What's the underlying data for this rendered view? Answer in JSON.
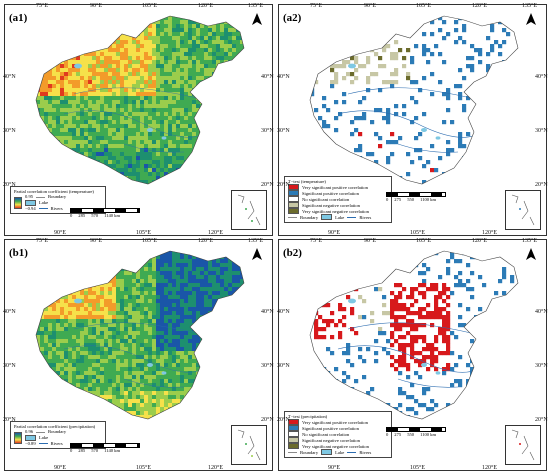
{
  "colors": {
    "temp_corr": [
      "#e03a1e",
      "#f39b2a",
      "#f6e14a",
      "#9bcd4c",
      "#3faa52",
      "#1d8f6f",
      "#1a56a8"
    ],
    "prec_corr": [
      "#e03a1e",
      "#f39b2a",
      "#f6e14a",
      "#9bcd4c",
      "#3faa52",
      "#1d8f6f",
      "#1a56a8"
    ],
    "ttest": [
      "#d7191c",
      "#2c7bb6",
      "#ffffff",
      "#c7c7a5",
      "#6b6b2c"
    ],
    "lake": "#7ec8e3",
    "river": "#2b6cb0",
    "boundary": "#8a8a8a"
  },
  "ticks": {
    "top": [
      "75°E",
      "90°E",
      "105°E",
      "120°E",
      "135°E"
    ],
    "bottom": [
      "90°E",
      "105°E",
      "120°E"
    ],
    "left": [
      "40°N",
      "30°N",
      "20°N"
    ],
    "right": [
      "40°N",
      "30°N",
      "20°N"
    ]
  },
  "panels": [
    {
      "id": "a1",
      "label": "(a1)",
      "type": "coefficient",
      "north": "N",
      "legend_title": "Partial correlation coefficient (temperature)",
      "legend_max": "0.95",
      "legend_min": "−0.94",
      "legend_boundary": "Boundary",
      "legend_lake": "Lake",
      "legend_rivers": "Rivers",
      "scale": [
        "0",
        "285",
        "570",
        "1140 km"
      ]
    },
    {
      "id": "a2",
      "label": "(a2)",
      "type": "ttest",
      "north": "N",
      "legend_title": "T−test (temperature)",
      "items": [
        "Very significant positive correlation",
        "Significant positive correlation",
        "No significant correlation",
        "Significant negative correlation",
        "Very significant negative correlation"
      ],
      "legend_boundary": "Boundary",
      "legend_lake": "Lake",
      "legend_rivers": "Rivers",
      "scale": [
        "0",
        "275",
        "550",
        "1100 km"
      ]
    },
    {
      "id": "b1",
      "label": "(b1)",
      "type": "coefficient",
      "north": "N",
      "legend_title": "Partial correlation coefficient (precipitation)",
      "legend_max": "0.96",
      "legend_min": "−0.89",
      "legend_boundary": "Boundary",
      "legend_lake": "Lake",
      "legend_rivers": "Rivers",
      "scale": [
        "0",
        "285",
        "570",
        "1140 km"
      ]
    },
    {
      "id": "b2",
      "label": "(b2)",
      "type": "ttest",
      "north": "N",
      "legend_title": "T−test (precipitation)",
      "items": [
        "Very significant positive correlation",
        "Significant positive correlation",
        "No significant correlation",
        "Significant negative correlation",
        "Very significant negative correlation"
      ],
      "legend_boundary": "Boundary",
      "legend_lake": "Lake",
      "legend_rivers": "Rivers",
      "scale": [
        "0",
        "275",
        "550",
        "1100 km"
      ]
    }
  ]
}
